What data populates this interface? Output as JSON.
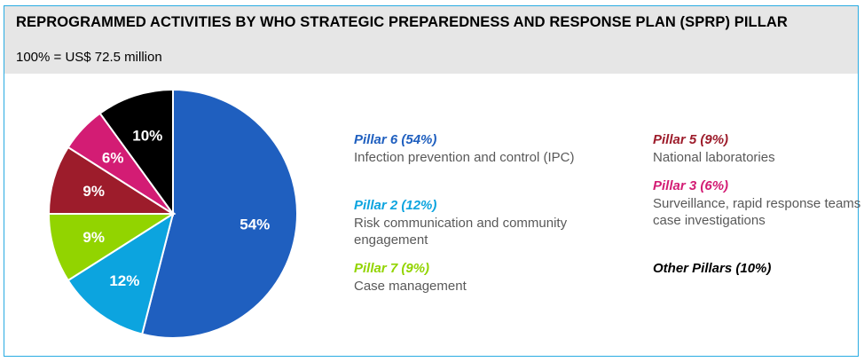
{
  "header": {
    "title": "REPROGRAMMED ACTIVITIES BY WHO STRATEGIC PREPAREDNESS AND RESPONSE PLAN (SPRP) PILLAR",
    "subtitle": "100% = US$ 72.5 million"
  },
  "chart_data": {
    "type": "pie",
    "title": "REPROGRAMMED ACTIVITIES BY WHO STRATEGIC PREPAREDNESS AND RESPONSE PLAN (SPRP) PILLAR",
    "subtitle": "100% = US$ 72.5 million",
    "slices": [
      {
        "label": "Pillar 6",
        "value": 54,
        "pct_label": "54%",
        "color": "#1f5fbf"
      },
      {
        "label": "Pillar 2",
        "value": 12,
        "pct_label": "12%",
        "color": "#0ca4df"
      },
      {
        "label": "Pillar 7",
        "value": 9,
        "pct_label": "9%",
        "color": "#92d400"
      },
      {
        "label": "Pillar 5",
        "value": 9,
        "pct_label": "9%",
        "color": "#9d1c2b"
      },
      {
        "label": "Pillar 3",
        "value": 6,
        "pct_label": "6%",
        "color": "#d31c74"
      },
      {
        "label": "Other Pillars",
        "value": 10,
        "pct_label": "10%",
        "color": "#000000"
      }
    ],
    "start_angle_deg": 0,
    "direction": "clockwise",
    "legend_placement": "right"
  },
  "legend": {
    "pillar6": {
      "head": "Pillar 6 (54%)",
      "desc": "Infection prevention and control (IPC)",
      "color": "#1f5fbf"
    },
    "pillar2": {
      "head": "Pillar 2 (12%)",
      "desc": "Risk communication and community engagement",
      "color": "#0ca4df"
    },
    "pillar7": {
      "head": "Pillar 7 (9%)",
      "desc": "Case management",
      "color": "#92d400"
    },
    "pillar5": {
      "head": "Pillar 5 (9%)",
      "desc": "National laboratories",
      "color": "#9d1c2b"
    },
    "pillar3": {
      "head": "Pillar 3 (6%)",
      "desc": "Surveillance, rapid response teams and case investigations",
      "color": "#d31c74"
    },
    "other": {
      "head": "Other Pillars (10%)",
      "desc": "",
      "color": "#000000"
    }
  }
}
